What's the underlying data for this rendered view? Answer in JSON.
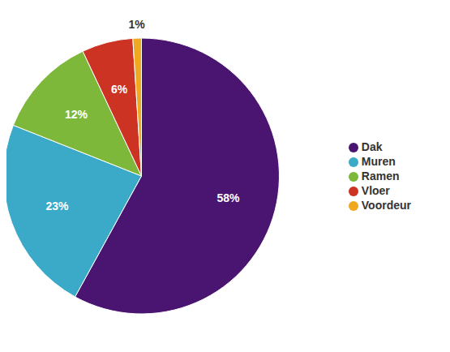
{
  "chart_data": {
    "type": "pie",
    "categories": [
      "Dak",
      "Muren",
      "Ramen",
      "Vloer",
      "Voordeur"
    ],
    "values": [
      58,
      23,
      12,
      6,
      1
    ],
    "value_labels": [
      "58%",
      "23%",
      "12%",
      "6%",
      "1%"
    ],
    "colors": [
      "#4a1570",
      "#3aaac8",
      "#7db83a",
      "#cc3322",
      "#f0a820"
    ],
    "data_labels": true,
    "legend": "right"
  }
}
